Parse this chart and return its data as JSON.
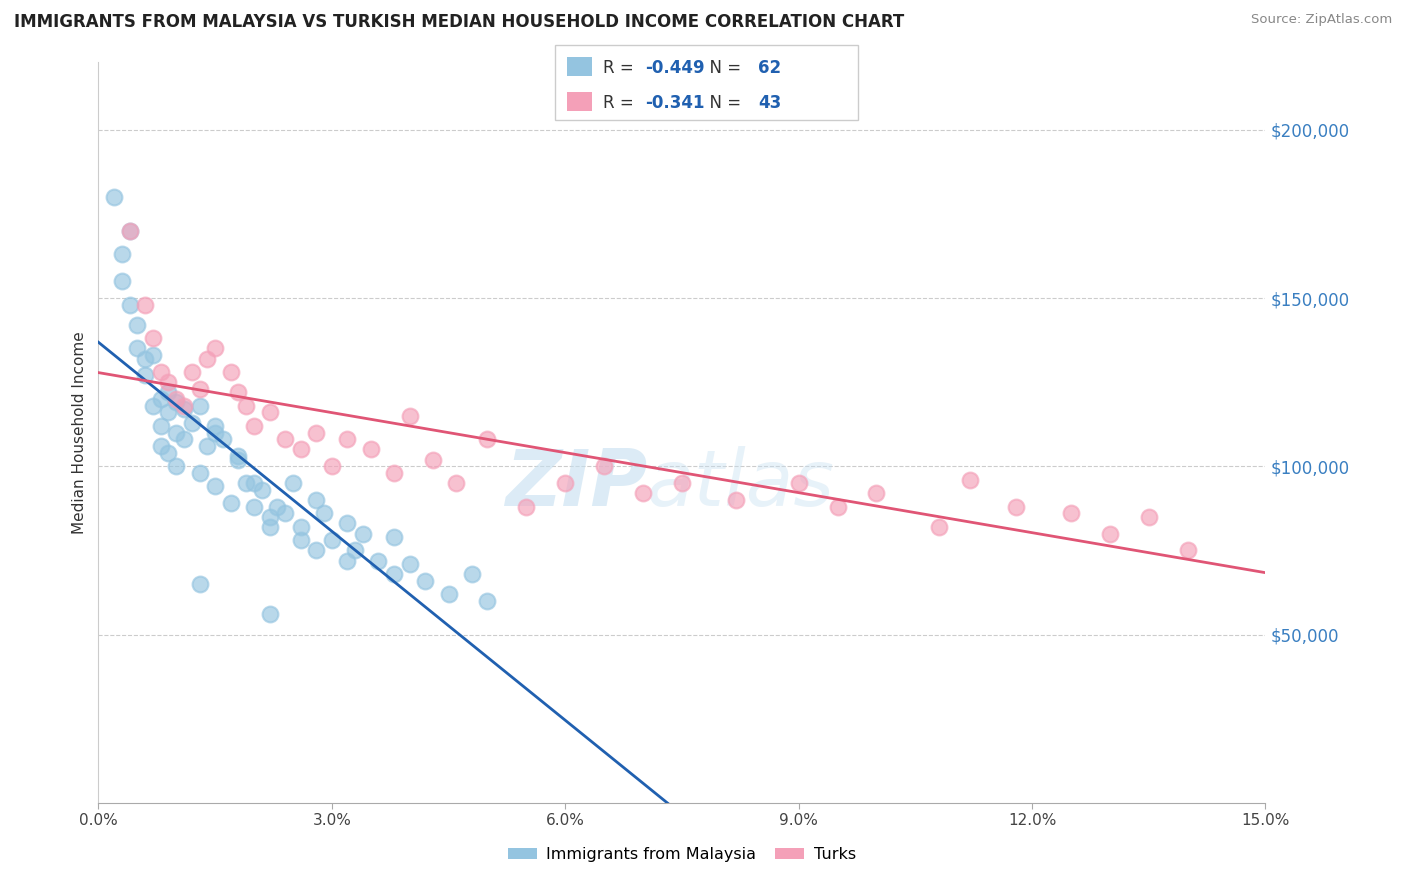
{
  "title": "IMMIGRANTS FROM MALAYSIA VS TURKISH MEDIAN HOUSEHOLD INCOME CORRELATION CHART",
  "source": "Source: ZipAtlas.com",
  "ylabel": "Median Household Income",
  "legend_label1": "Immigrants from Malaysia",
  "legend_label2": "Turks",
  "R1": -0.449,
  "N1": 62,
  "R2": -0.341,
  "N2": 43,
  "color1": "#94c4e0",
  "color2": "#f4a0b8",
  "line_color1": "#2060b0",
  "line_color2": "#e05575",
  "xlim": [
    0.0,
    0.15
  ],
  "ylim": [
    0,
    220000
  ],
  "xticks": [
    0.0,
    0.03,
    0.06,
    0.09,
    0.12,
    0.15
  ],
  "xtick_labels": [
    "0.0%",
    "3.0%",
    "6.0%",
    "9.0%",
    "12.0%",
    "15.0%"
  ],
  "ytick_labels": [
    "$50,000",
    "$100,000",
    "$150,000",
    "$200,000"
  ],
  "yticks": [
    50000,
    100000,
    150000,
    200000
  ],
  "blue_x": [
    0.002,
    0.003,
    0.003,
    0.004,
    0.004,
    0.005,
    0.005,
    0.006,
    0.006,
    0.007,
    0.007,
    0.008,
    0.008,
    0.008,
    0.009,
    0.009,
    0.009,
    0.01,
    0.01,
    0.01,
    0.011,
    0.011,
    0.012,
    0.013,
    0.013,
    0.014,
    0.015,
    0.015,
    0.016,
    0.017,
    0.018,
    0.019,
    0.02,
    0.021,
    0.022,
    0.023,
    0.025,
    0.026,
    0.028,
    0.029,
    0.03,
    0.032,
    0.033,
    0.034,
    0.036,
    0.038,
    0.038,
    0.04,
    0.042,
    0.045,
    0.048,
    0.05,
    0.022,
    0.024,
    0.026,
    0.028,
    0.032,
    0.013,
    0.015,
    0.018,
    0.02,
    0.022
  ],
  "blue_y": [
    180000,
    163000,
    155000,
    170000,
    148000,
    142000,
    135000,
    127000,
    132000,
    133000,
    118000,
    120000,
    112000,
    106000,
    122000,
    116000,
    104000,
    119000,
    110000,
    100000,
    117000,
    108000,
    113000,
    118000,
    98000,
    106000,
    110000,
    94000,
    108000,
    89000,
    103000,
    95000,
    88000,
    93000,
    85000,
    88000,
    95000,
    82000,
    90000,
    86000,
    78000,
    83000,
    75000,
    80000,
    72000,
    79000,
    68000,
    71000,
    66000,
    62000,
    68000,
    60000,
    56000,
    86000,
    78000,
    75000,
    72000,
    65000,
    112000,
    102000,
    95000,
    82000
  ],
  "pink_x": [
    0.004,
    0.006,
    0.007,
    0.008,
    0.009,
    0.01,
    0.011,
    0.012,
    0.013,
    0.014,
    0.015,
    0.017,
    0.018,
    0.019,
    0.02,
    0.022,
    0.024,
    0.026,
    0.028,
    0.03,
    0.032,
    0.035,
    0.038,
    0.04,
    0.043,
    0.046,
    0.05,
    0.055,
    0.06,
    0.065,
    0.07,
    0.075,
    0.082,
    0.09,
    0.095,
    0.1,
    0.108,
    0.112,
    0.118,
    0.125,
    0.13,
    0.135,
    0.14
  ],
  "pink_y": [
    170000,
    148000,
    138000,
    128000,
    125000,
    120000,
    118000,
    128000,
    123000,
    132000,
    135000,
    128000,
    122000,
    118000,
    112000,
    116000,
    108000,
    105000,
    110000,
    100000,
    108000,
    105000,
    98000,
    115000,
    102000,
    95000,
    108000,
    88000,
    95000,
    100000,
    92000,
    95000,
    90000,
    95000,
    88000,
    92000,
    82000,
    96000,
    88000,
    86000,
    80000,
    85000,
    75000
  ]
}
